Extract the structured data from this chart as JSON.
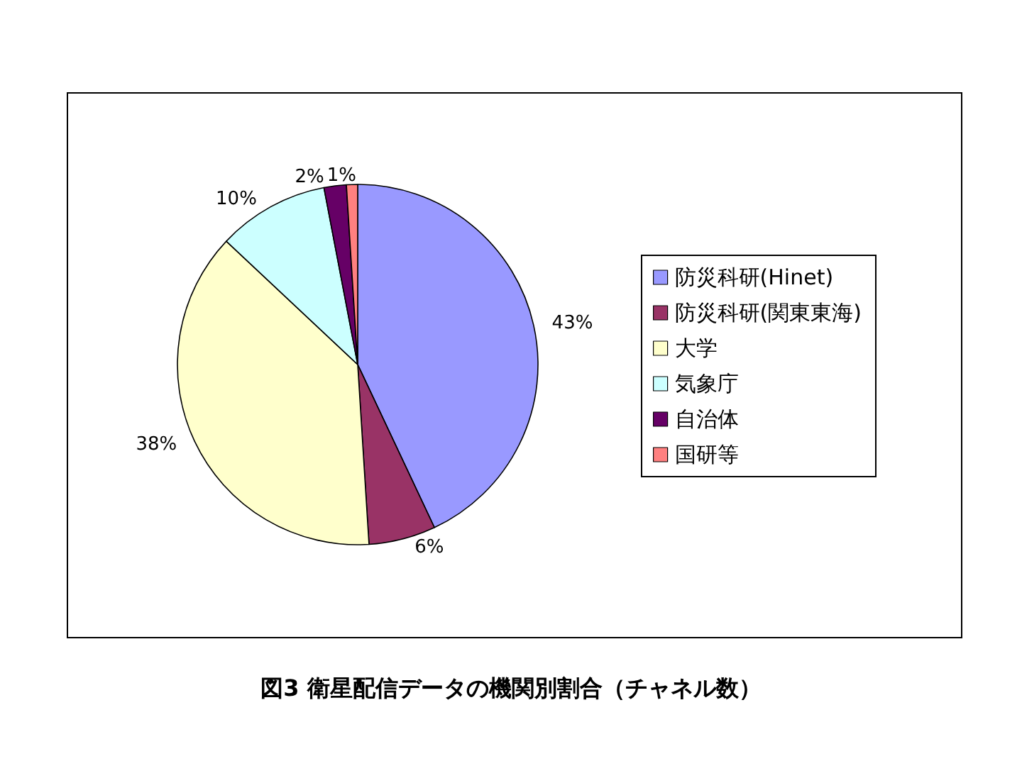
{
  "chart_data": {
    "type": "pie",
    "title": "図3 衛星配信データの機関別割合（チャネル数）",
    "categories": [
      "防災科研(Hinet)",
      "防災科研(関東東海)",
      "大学",
      "気象庁",
      "自治体",
      "国研等"
    ],
    "values": [
      43,
      6,
      38,
      10,
      2,
      1
    ],
    "colors": [
      "#9999ff",
      "#993366",
      "#ffffcc",
      "#ccffff",
      "#660066",
      "#ff8080"
    ],
    "value_labels": [
      "43%",
      "6%",
      "38%",
      "10%",
      "2%",
      "1%"
    ],
    "legend": "right"
  }
}
